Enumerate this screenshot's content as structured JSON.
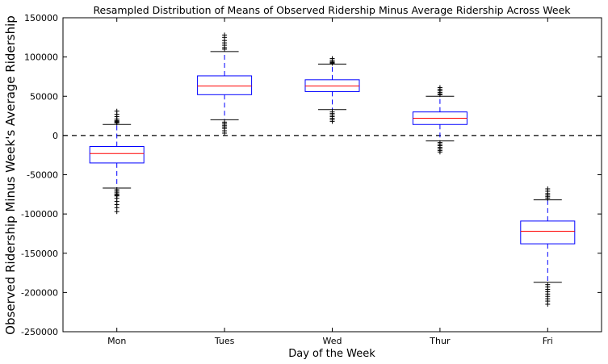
{
  "chart_data": {
    "type": "box",
    "title": "Resampled Distribution of Means of Observed Ridership Minus Average Ridership Across Week",
    "xlabel": "Day of the Week",
    "ylabel": "Observed Ridership Minus Week's Average Ridership",
    "ylim": [
      -250000,
      150000
    ],
    "yticks": [
      150000,
      100000,
      50000,
      0,
      -50000,
      -100000,
      -150000,
      -200000,
      -250000
    ],
    "categories": [
      "Mon",
      "Tues",
      "Wed",
      "Thur",
      "Fri"
    ],
    "reference_line": {
      "y": 0,
      "style": "dashed"
    },
    "boxes": [
      {
        "category": "Mon",
        "whisker_low": -67000,
        "q1": -35000,
        "median": -23000,
        "q3": -14000,
        "whisker_high": 14000,
        "fliers": [
          31000,
          27000,
          24000,
          21000,
          19000,
          18000,
          17000,
          16000,
          -69000,
          -71000,
          -73000,
          -75000,
          -76000,
          -77000,
          -80000,
          -84000,
          -88000,
          -92000,
          -97000
        ]
      },
      {
        "category": "Tues",
        "whisker_low": 20000,
        "q1": 52000,
        "median": 63000,
        "q3": 76000,
        "whisker_high": 107000,
        "fliers": [
          128000,
          125000,
          121000,
          118000,
          115000,
          112000,
          110000,
          17000,
          15000,
          13000,
          11000,
          9000,
          6000,
          3000
        ]
      },
      {
        "category": "Wed",
        "whisker_low": 33000,
        "q1": 56000,
        "median": 63000,
        "q3": 71000,
        "whisker_high": 91000,
        "fliers": [
          98000,
          96000,
          94000,
          93000,
          92000,
          30000,
          28000,
          26000,
          24000,
          22000,
          20000,
          18000
        ]
      },
      {
        "category": "Thur",
        "whisker_low": -7000,
        "q1": 14000,
        "median": 22000,
        "q3": 30000,
        "whisker_high": 50000,
        "fliers": [
          61000,
          59000,
          57000,
          55000,
          53000,
          52000,
          -9000,
          -11000,
          -13000,
          -15000,
          -17000,
          -19000,
          -21000
        ]
      },
      {
        "category": "Fri",
        "whisker_low": -187000,
        "q1": -138000,
        "median": -122000,
        "q3": -109000,
        "whisker_high": -82000,
        "fliers": [
          -68000,
          -71000,
          -74000,
          -76000,
          -78000,
          -80000,
          -190000,
          -193000,
          -196000,
          -199000,
          -202000,
          -205000,
          -208000,
          -211000,
          -215000
        ]
      }
    ],
    "colors": {
      "box": "#0000ff",
      "median": "#ff0000",
      "whisker": "#0000ff",
      "cap": "#000000",
      "flier": "#000000"
    }
  }
}
